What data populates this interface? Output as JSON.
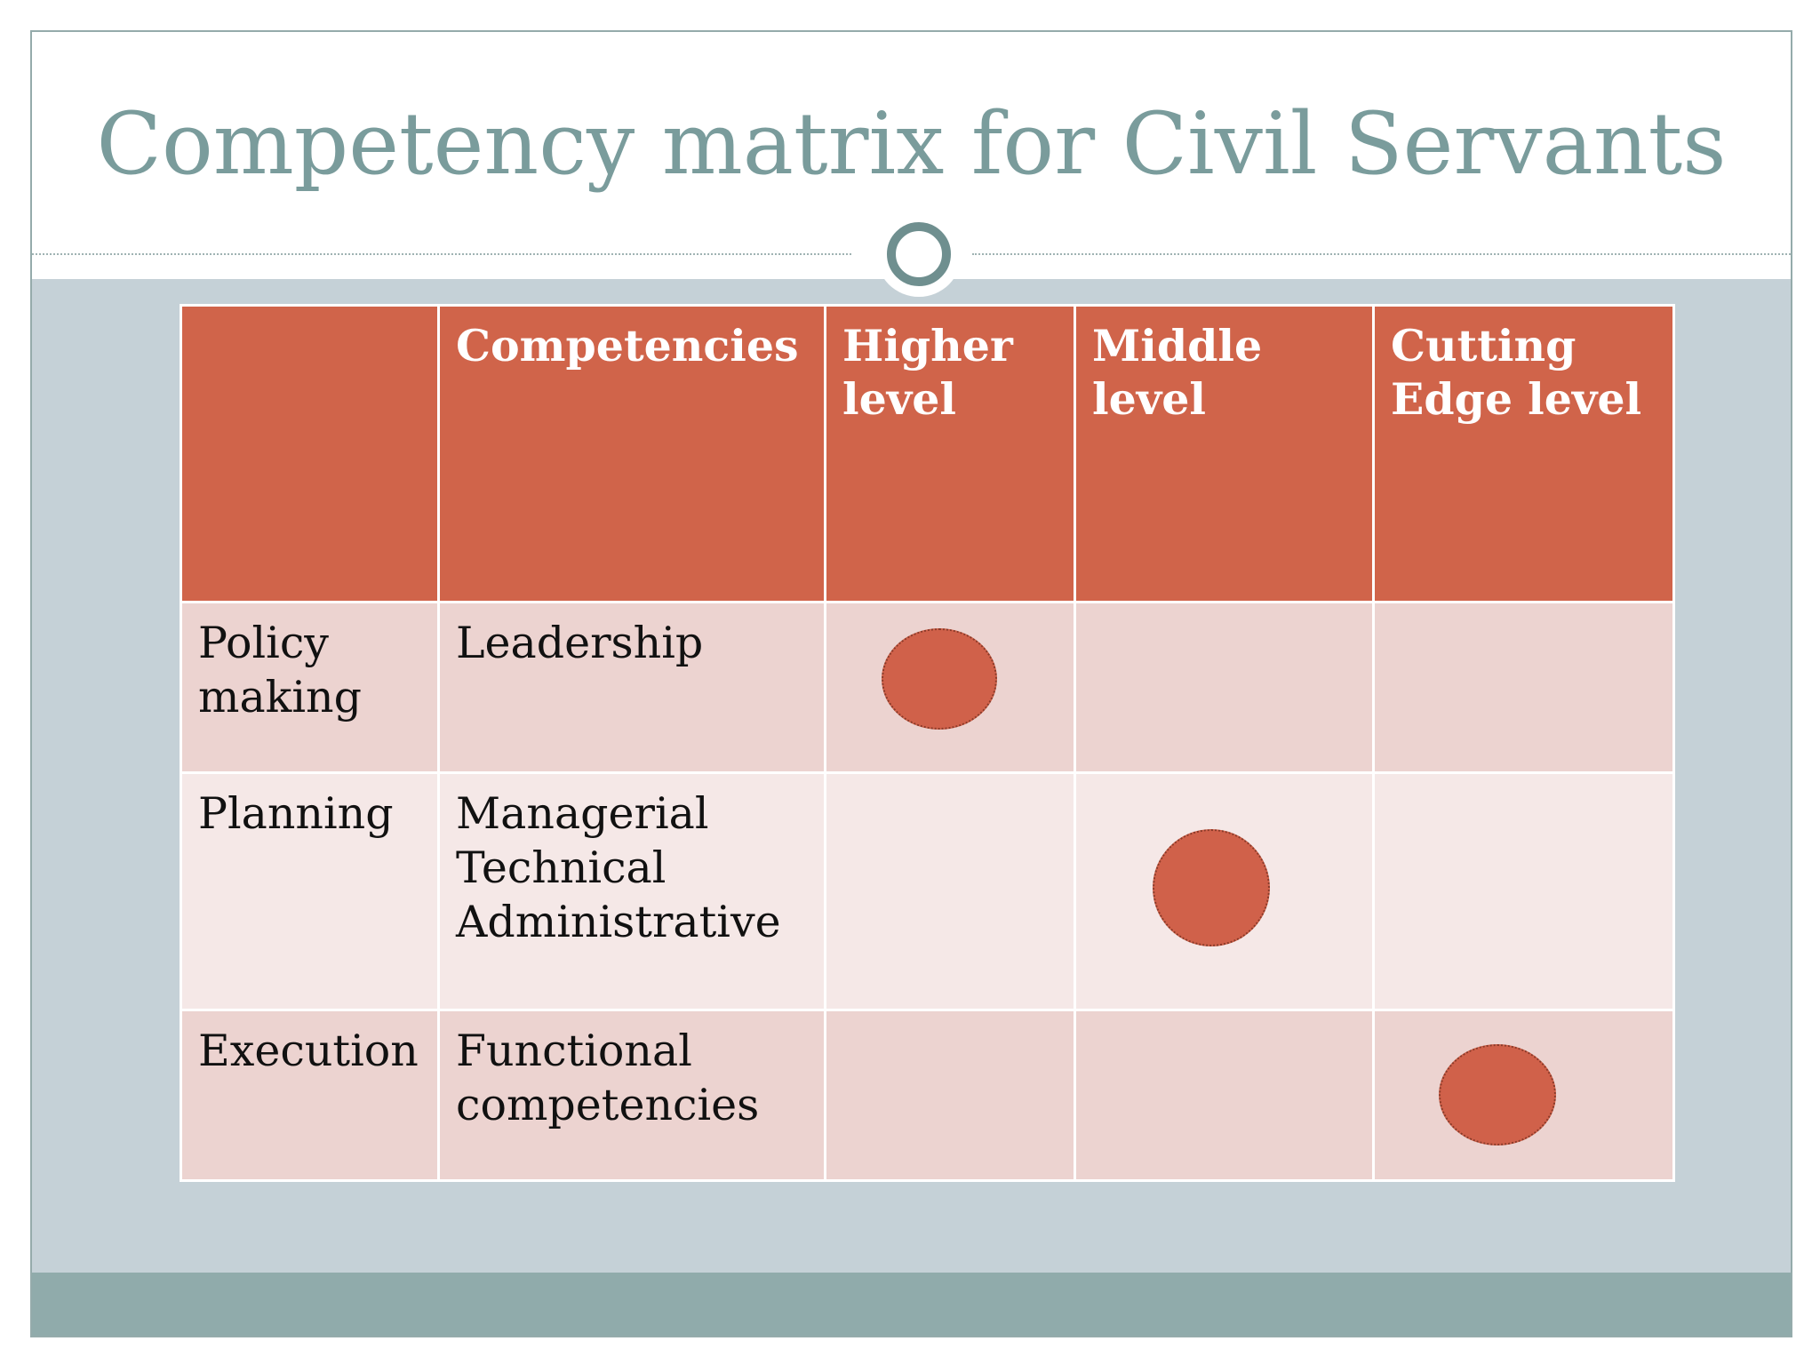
{
  "slide": {
    "title": "Competency matrix for Civil Servants"
  },
  "table": {
    "headers": [
      "",
      "Competencies",
      "Higher level",
      "Middle level",
      "Cutting Edge level"
    ],
    "rows": [
      {
        "function": "Policy making",
        "competencies": [
          "Leadership"
        ],
        "marked_level": "Higher level"
      },
      {
        "function": "Planning",
        "competencies": [
          "Managerial",
          "Technical",
          "Administrative"
        ],
        "marked_level": "Middle level"
      },
      {
        "function": "Execution",
        "competencies": [
          "Functional competencies"
        ],
        "marked_level": "Cutting Edge level"
      }
    ]
  },
  "colors": {
    "title_text": "#7a9c9c",
    "header_fill": "#d0644a",
    "row_odd_fill": "#ecd3d0",
    "row_even_fill": "#f5e8e7",
    "marker_dot": "#d0614a",
    "panel_background": "#c5d1d7",
    "bottom_bar": "#90abab",
    "ring": "#6f8f8f"
  }
}
